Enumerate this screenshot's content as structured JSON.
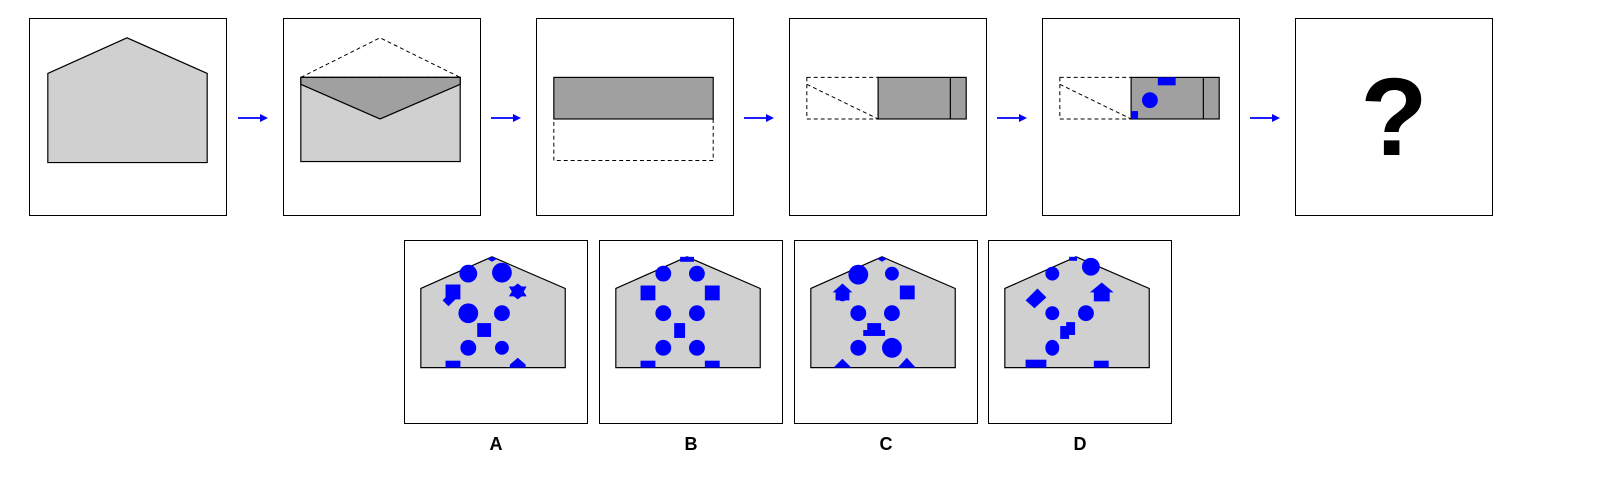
{
  "colors": {
    "paper": "#d0d0d0",
    "folded": "#a0a0a0",
    "hole": "#0000ff",
    "arrow": "#0000ff",
    "stroke": "#000000"
  },
  "sequence": {
    "question_mark": "?",
    "steps": [
      "unfolded-paper",
      "fold-top-flap",
      "fold-down",
      "fold-left",
      "punch-holes",
      "answer"
    ]
  },
  "options": [
    {
      "label": "A"
    },
    {
      "label": "B"
    },
    {
      "label": "C"
    },
    {
      "label": "D"
    }
  ]
}
